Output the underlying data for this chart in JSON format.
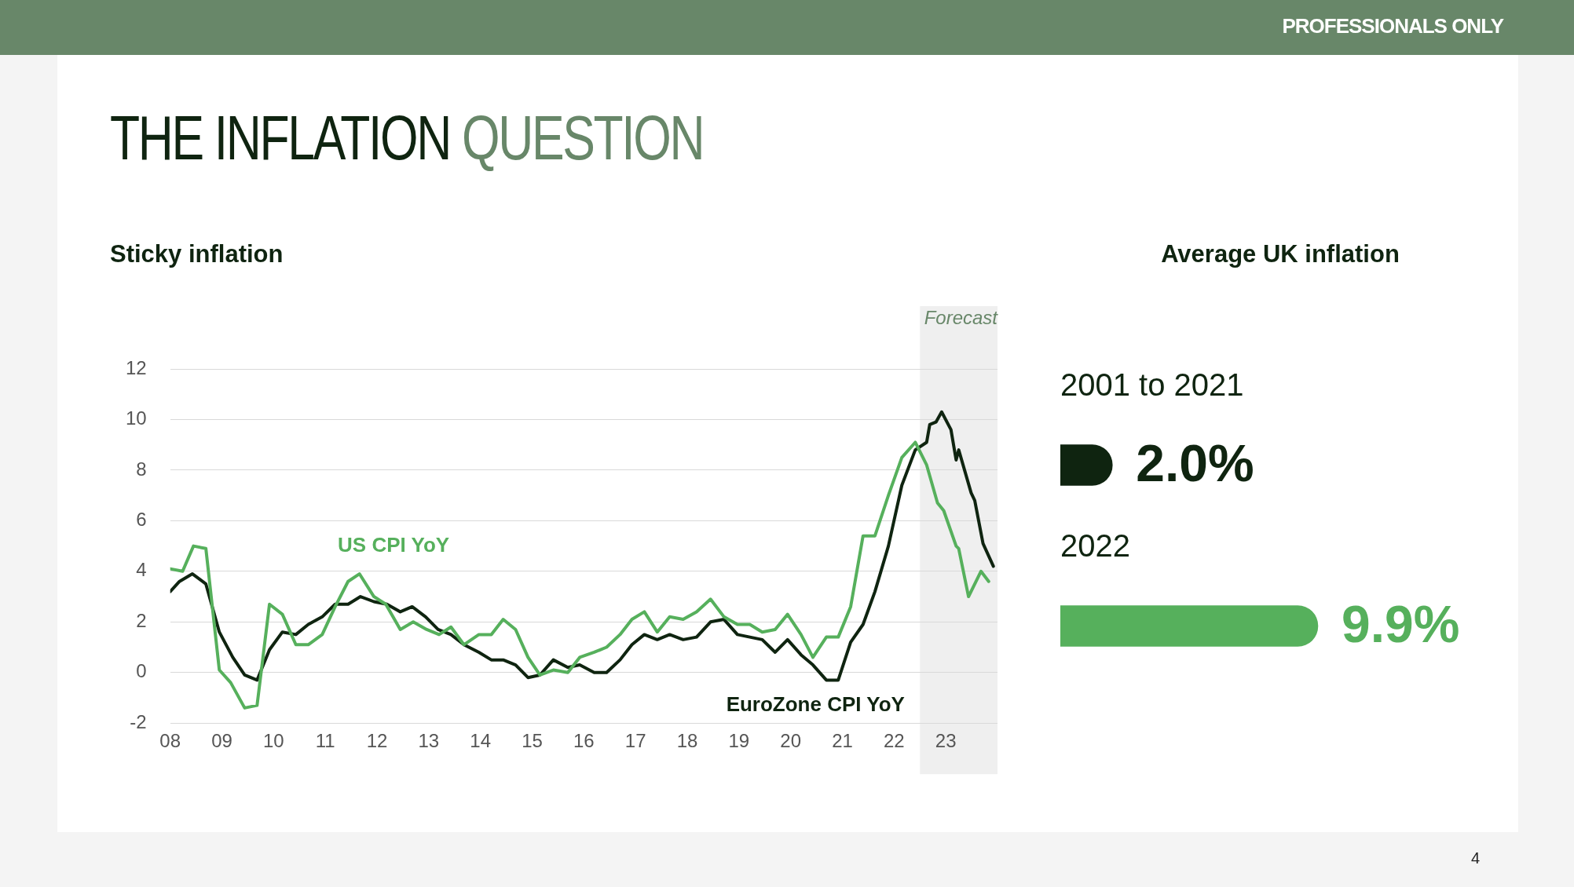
{
  "chart_data": [
    {
      "type": "line",
      "title": "Sticky inflation",
      "annotations": [
        "PROFESSIONALS ONLY",
        "THE INFLATION QUESTION",
        "4"
      ],
      "xlim": [
        2008,
        2024
      ],
      "xticks": [
        {
          "value": 2008,
          "label": "08"
        },
        {
          "value": 2009,
          "label": "09"
        },
        {
          "value": 2010,
          "label": "10"
        },
        {
          "value": 2011,
          "label": "11"
        },
        {
          "value": 2012,
          "label": "12"
        },
        {
          "value": 2013,
          "label": "13"
        },
        {
          "value": 2014,
          "label": "14"
        },
        {
          "value": 2015,
          "label": "15"
        },
        {
          "value": 2016,
          "label": "16"
        },
        {
          "value": 2017,
          "label": "17"
        },
        {
          "value": 2018,
          "label": "18"
        },
        {
          "value": 2019,
          "label": "19"
        },
        {
          "value": 2020,
          "label": "20"
        },
        {
          "value": 2021,
          "label": "21"
        },
        {
          "value": 2022,
          "label": "22"
        },
        {
          "value": 2023,
          "label": "23"
        }
      ],
      "ylim": [
        -2,
        12
      ],
      "yticks": [
        -2,
        0,
        2,
        4,
        6,
        8,
        10,
        12
      ],
      "grid": "y",
      "legend": false,
      "marker": "none",
      "line_style": "solid",
      "bands": [
        {
          "axis": "x",
          "from": 2022.5,
          "to": 2024,
          "label": "Forecast",
          "color": "#efefef"
        }
      ],
      "series": [
        {
          "name": "US CPI YoY",
          "color": "#56b05c",
          "x": [
            2008.0,
            2008.24,
            2008.45,
            2008.69,
            2008.95,
            2009.17,
            2009.44,
            2009.68,
            2009.92,
            2010.17,
            2010.43,
            2010.67,
            2010.94,
            2011.19,
            2011.44,
            2011.66,
            2011.94,
            2012.17,
            2012.45,
            2012.7,
            2012.96,
            2013.2,
            2013.43,
            2013.68,
            2013.97,
            2014.21,
            2014.44,
            2014.68,
            2014.92,
            2015.15,
            2015.41,
            2015.69,
            2015.92,
            2016.2,
            2016.44,
            2016.7,
            2016.93,
            2017.17,
            2017.42,
            2017.66,
            2017.92,
            2018.18,
            2018.45,
            2018.71,
            2018.97,
            2019.21,
            2019.45,
            2019.7,
            2019.94,
            2020.2,
            2020.43,
            2020.69,
            2020.92,
            2021.16,
            2021.4,
            2021.63,
            2021.89,
            2022.15,
            2022.41,
            2022.63,
            2022.84,
            2022.96,
            2023.2,
            2023.25,
            2023.44,
            2023.68,
            2023.83
          ],
          "values": [
            4.1,
            4.0,
            5.0,
            4.9,
            0.1,
            -0.4,
            -1.4,
            -1.3,
            2.7,
            2.3,
            1.1,
            1.1,
            1.5,
            2.6,
            3.6,
            3.9,
            3.0,
            2.7,
            1.7,
            2.0,
            1.7,
            1.5,
            1.8,
            1.1,
            1.5,
            1.5,
            2.1,
            1.7,
            0.6,
            -0.1,
            0.1,
            0.0,
            0.6,
            0.8,
            1.0,
            1.5,
            2.1,
            2.4,
            1.6,
            2.2,
            2.1,
            2.4,
            2.9,
            2.2,
            1.9,
            1.9,
            1.6,
            1.7,
            2.3,
            1.5,
            0.6,
            1.4,
            1.4,
            2.6,
            5.4,
            5.4,
            7.0,
            8.5,
            9.1,
            8.2,
            6.7,
            6.4,
            5.0,
            4.9,
            3.0,
            4.0,
            3.6
          ]
        },
        {
          "name": "EuroZone CPI YoY",
          "color": "#0f2410",
          "x": [
            2008.0,
            2008.18,
            2008.43,
            2008.69,
            2008.95,
            2009.21,
            2009.44,
            2009.68,
            2009.92,
            2010.17,
            2010.43,
            2010.67,
            2010.94,
            2011.19,
            2011.44,
            2011.68,
            2011.94,
            2012.19,
            2012.45,
            2012.68,
            2012.94,
            2013.18,
            2013.43,
            2013.68,
            2013.97,
            2014.21,
            2014.44,
            2014.68,
            2014.92,
            2015.15,
            2015.41,
            2015.69,
            2015.92,
            2016.2,
            2016.44,
            2016.7,
            2016.93,
            2017.17,
            2017.42,
            2017.66,
            2017.92,
            2018.18,
            2018.45,
            2018.71,
            2018.97,
            2019.45,
            2019.7,
            2019.94,
            2020.2,
            2020.43,
            2020.69,
            2020.92,
            2021.16,
            2021.4,
            2021.63,
            2021.89,
            2022.15,
            2022.41,
            2022.63,
            2022.69,
            2022.81,
            2022.92,
            2023.1,
            2023.2,
            2023.25,
            2023.49,
            2023.56,
            2023.72,
            2023.92
          ],
          "values": [
            3.2,
            3.6,
            3.9,
            3.5,
            1.6,
            0.6,
            -0.1,
            -0.3,
            0.9,
            1.6,
            1.5,
            1.9,
            2.2,
            2.7,
            2.7,
            3.0,
            2.8,
            2.7,
            2.4,
            2.6,
            2.2,
            1.7,
            1.5,
            1.1,
            0.8,
            0.5,
            0.5,
            0.3,
            -0.2,
            -0.1,
            0.5,
            0.2,
            0.3,
            0.0,
            0.0,
            0.5,
            1.1,
            1.5,
            1.3,
            1.5,
            1.3,
            1.4,
            2.0,
            2.1,
            1.5,
            1.3,
            0.8,
            1.3,
            0.7,
            0.3,
            -0.3,
            -0.3,
            1.2,
            1.9,
            3.2,
            5.0,
            7.4,
            8.8,
            9.1,
            9.8,
            9.9,
            10.3,
            9.6,
            8.4,
            8.8,
            7.1,
            6.8,
            5.1,
            4.2
          ]
        }
      ]
    },
    {
      "type": "bar",
      "orientation": "horizontal",
      "title": "Average UK inflation",
      "categories": [
        "2001 to 2021",
        "2022"
      ],
      "values": [
        2.0,
        9.9
      ],
      "colors": [
        "#0f2410",
        "#56b05c"
      ],
      "value_labels": [
        "2.0%",
        "9.9%"
      ],
      "legend": false,
      "grid": false
    }
  ]
}
